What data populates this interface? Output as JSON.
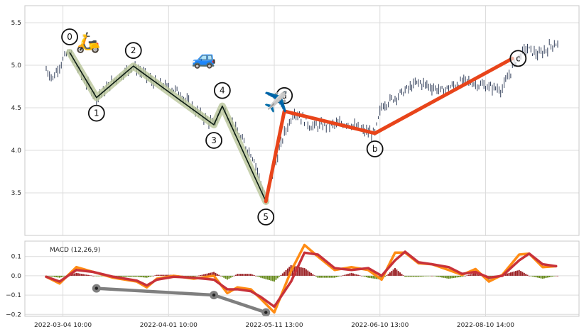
{
  "chart_data": [
    {
      "type": "ohlc",
      "panel": "price",
      "grid": true,
      "ylim": [
        3.0,
        5.7
      ],
      "yticks": [
        3.5,
        4.0,
        4.5,
        5.0,
        5.5
      ],
      "ytick_labels": [
        "3.5",
        "4.0",
        "4.5",
        "5.0",
        "5.5"
      ],
      "price_path": [
        [
          0,
          4.95
        ],
        [
          4,
          4.85
        ],
        [
          8,
          5.0
        ],
        [
          12,
          5.12
        ],
        [
          14,
          5.15
        ],
        [
          22,
          4.85
        ],
        [
          30,
          4.62
        ],
        [
          42,
          4.85
        ],
        [
          52,
          4.99
        ],
        [
          64,
          4.8
        ],
        [
          78,
          4.7
        ],
        [
          90,
          4.45
        ],
        [
          100,
          4.3
        ],
        [
          105,
          4.52
        ],
        [
          114,
          4.2
        ],
        [
          124,
          3.9
        ],
        [
          131,
          3.4
        ],
        [
          136,
          3.8
        ],
        [
          142,
          4.2
        ],
        [
          148,
          4.46
        ],
        [
          158,
          4.28
        ],
        [
          170,
          4.3
        ],
        [
          180,
          4.32
        ],
        [
          190,
          4.22
        ],
        [
          196,
          4.2
        ],
        [
          200,
          4.52
        ],
        [
          210,
          4.65
        ],
        [
          222,
          4.8
        ],
        [
          236,
          4.7
        ],
        [
          250,
          4.82
        ],
        [
          262,
          4.75
        ],
        [
          272,
          4.72
        ],
        [
          280,
          5.05
        ],
        [
          286,
          5.2
        ],
        [
          294,
          5.12
        ],
        [
          302,
          5.25
        ]
      ],
      "waves": {
        "impulse": [
          {
            "label": "0",
            "x": 14,
            "y": 5.15
          },
          {
            "label": "1",
            "x": 30,
            "y": 4.62
          },
          {
            "label": "2",
            "x": 52,
            "y": 4.99
          },
          {
            "label": "3",
            "x": 100,
            "y": 4.3
          },
          {
            "label": "4",
            "x": 105,
            "y": 4.52
          },
          {
            "label": "5",
            "x": 131,
            "y": 3.4
          }
        ],
        "correction": [
          {
            "label": "5",
            "x": 131,
            "y": 3.4
          },
          {
            "label": "a",
            "x": 142,
            "y": 4.46
          },
          {
            "label": "b",
            "x": 196,
            "y": 4.2
          },
          {
            "label": "c",
            "x": 278,
            "y": 5.08
          }
        ]
      },
      "emojis": [
        {
          "glyph": "🛵",
          "name": "scooter-emoji",
          "x": 25,
          "y": 5.19
        },
        {
          "glyph": "🚙",
          "name": "car-emoji",
          "x": 94,
          "y": 5.01
        },
        {
          "glyph": "✈️",
          "name": "airplane-emoji",
          "x": 137,
          "y": 4.49
        }
      ]
    },
    {
      "type": "macd",
      "panel": "indicator",
      "title": "MACD (12,26,9)",
      "grid": true,
      "ylim": [
        -0.21,
        0.18
      ],
      "yticks": [
        -0.2,
        -0.1,
        0.0,
        0.1
      ],
      "ytick_labels": [
        "−0.2",
        "−0.1",
        "0.0",
        "0.1"
      ],
      "macd": [
        [
          0,
          -0.005
        ],
        [
          8,
          -0.04
        ],
        [
          18,
          0.045
        ],
        [
          28,
          0.02
        ],
        [
          40,
          -0.01
        ],
        [
          54,
          -0.03
        ],
        [
          60,
          -0.06
        ],
        [
          66,
          -0.015
        ],
        [
          76,
          0.0
        ],
        [
          88,
          -0.015
        ],
        [
          100,
          0.0
        ],
        [
          108,
          -0.09
        ],
        [
          114,
          -0.06
        ],
        [
          122,
          -0.07
        ],
        [
          128,
          -0.12
        ],
        [
          136,
          -0.19
        ],
        [
          146,
          0.025
        ],
        [
          154,
          0.16
        ],
        [
          162,
          0.1
        ],
        [
          172,
          0.03
        ],
        [
          182,
          0.045
        ],
        [
          192,
          0.03
        ],
        [
          200,
          -0.02
        ],
        [
          208,
          0.12
        ],
        [
          214,
          0.12
        ],
        [
          222,
          0.065
        ],
        [
          230,
          0.06
        ],
        [
          240,
          0.03
        ],
        [
          248,
          0.005
        ],
        [
          256,
          0.035
        ],
        [
          264,
          -0.03
        ],
        [
          272,
          0.005
        ],
        [
          282,
          0.11
        ],
        [
          288,
          0.115
        ],
        [
          296,
          0.045
        ],
        [
          304,
          0.05
        ]
      ],
      "signal": [
        [
          0,
          -0.005
        ],
        [
          8,
          -0.03
        ],
        [
          18,
          0.03
        ],
        [
          28,
          0.02
        ],
        [
          40,
          -0.005
        ],
        [
          54,
          -0.025
        ],
        [
          60,
          -0.05
        ],
        [
          66,
          -0.02
        ],
        [
          76,
          -0.005
        ],
        [
          88,
          -0.01
        ],
        [
          100,
          -0.02
        ],
        [
          108,
          -0.07
        ],
        [
          114,
          -0.07
        ],
        [
          122,
          -0.08
        ],
        [
          128,
          -0.11
        ],
        [
          136,
          -0.16
        ],
        [
          146,
          -0.03
        ],
        [
          154,
          0.12
        ],
        [
          162,
          0.11
        ],
        [
          172,
          0.04
        ],
        [
          182,
          0.03
        ],
        [
          192,
          0.04
        ],
        [
          200,
          0.0
        ],
        [
          208,
          0.08
        ],
        [
          214,
          0.125
        ],
        [
          222,
          0.07
        ],
        [
          230,
          0.06
        ],
        [
          240,
          0.045
        ],
        [
          248,
          0.01
        ],
        [
          256,
          0.02
        ],
        [
          264,
          -0.01
        ],
        [
          272,
          0.0
        ],
        [
          282,
          0.08
        ],
        [
          288,
          0.115
        ],
        [
          296,
          0.06
        ],
        [
          304,
          0.05
        ]
      ],
      "divergence": [
        {
          "label": "1",
          "x": 30,
          "y": -0.065
        },
        {
          "label": "3",
          "x": 100,
          "y": -0.1
        },
        {
          "label": "5",
          "x": 131,
          "y": -0.19
        }
      ]
    }
  ],
  "x_axis": {
    "n_bars": 306,
    "ticks": [
      {
        "x": 10,
        "label": "2022-03-04 10:00"
      },
      {
        "x": 73,
        "label": "2022-04-01 10:00"
      },
      {
        "x": 136,
        "label": "2022-05-11 13:00"
      },
      {
        "x": 199,
        "label": "2022-06-10 13:00"
      },
      {
        "x": 262,
        "label": "2022-08-10 14:00"
      }
    ]
  },
  "colors": {
    "bar": "#1c2a48",
    "impulse_line": "#0b1a12",
    "impulse_halo": "#b9c69a",
    "correction_line": "#e8441a",
    "macd_line": "#ff8c14",
    "signal_line": "#c8323a",
    "hist_pos": "#9b2226",
    "hist_neg": "#6b8e23",
    "divergence_line": "#7f7f7f",
    "grid": "#dcdcdc",
    "spine": "#c8c8c8"
  }
}
